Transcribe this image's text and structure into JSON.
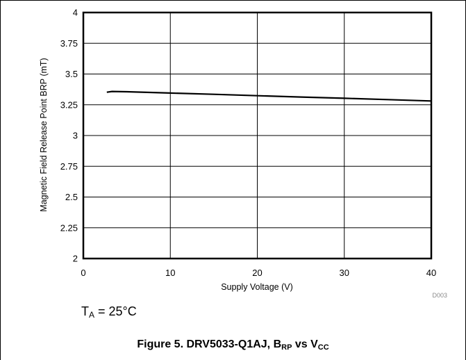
{
  "chart_data": {
    "type": "line",
    "ylabel": "Magnetic Field Release Point BRP (mT)",
    "xlabel": "Supply Voltage (V)",
    "xlim": [
      0,
      40
    ],
    "ylim": [
      2,
      4
    ],
    "xticks": [
      "0",
      "10",
      "20",
      "30",
      "40"
    ],
    "yticks": [
      "4",
      "3.75",
      "3.5",
      "3.25",
      "3",
      "2.75",
      "2.5",
      "2.25",
      "2"
    ],
    "grid": true,
    "series": [
      {
        "x": [
          2.7,
          3.3,
          5,
          10,
          15,
          20,
          25,
          30,
          35,
          40
        ],
        "y": [
          3.352,
          3.358,
          3.356,
          3.345,
          3.335,
          3.324,
          3.313,
          3.303,
          3.292,
          3.281
        ]
      }
    ],
    "figure_code": "D003",
    "line_color": "#000000"
  },
  "condition": {
    "t": "T",
    "sub": "A",
    "rest": " = 25°C"
  },
  "caption": {
    "prefix": "Figure 5. DRV5033-Q1AJ, B",
    "b_sub": "RP",
    "vs": " vs V",
    "v_sub": "CC"
  }
}
